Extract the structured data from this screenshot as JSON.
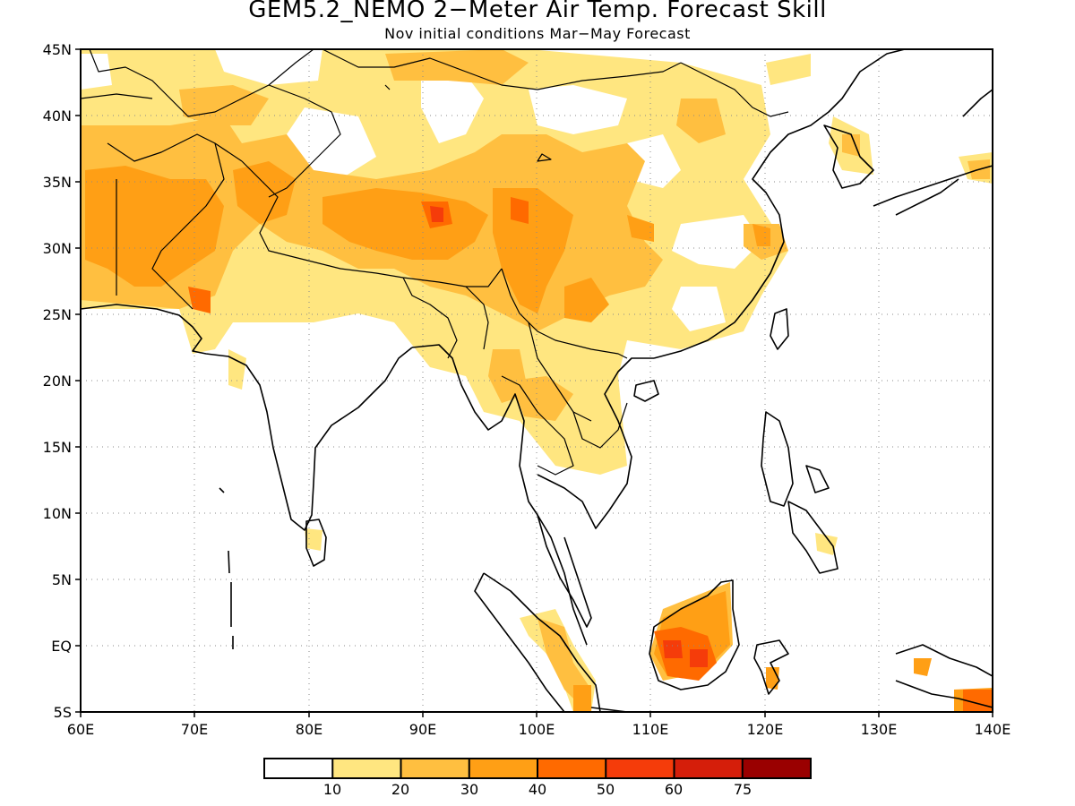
{
  "title": "GEM5.2_NEMO 2−Meter Air Temp. Forecast Skill",
  "subtitle": "Nov initial conditions  Mar−May Forecast",
  "lat_labels": [
    "45N",
    "40N",
    "35N",
    "30N",
    "25N",
    "20N",
    "15N",
    "10N",
    "5N",
    "EQ",
    "5S"
  ],
  "lon_labels": [
    "60E",
    "70E",
    "80E",
    "90E",
    "100E",
    "110E",
    "120E",
    "130E",
    "140E"
  ],
  "colorbar": {
    "colors": [
      "#ffffff",
      "#ffe680",
      "#ffbf40",
      "#ff9f15",
      "#ff6a00",
      "#f53c0a",
      "#d51e0a",
      "#9a0000"
    ],
    "tick_labels": [
      "10",
      "20",
      "30",
      "40",
      "50",
      "60",
      "75"
    ]
  }
}
